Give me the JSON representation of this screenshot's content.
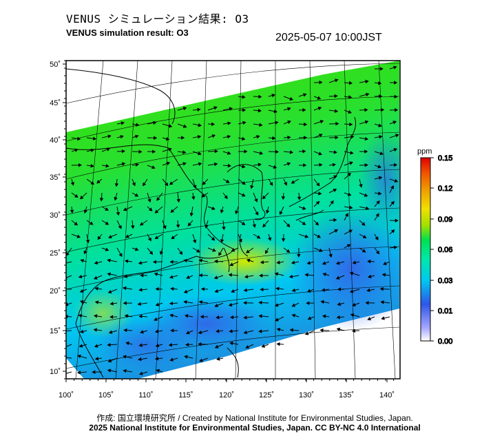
{
  "header": {
    "title_jp": "VENUS シミュレーション結果: O3",
    "title_en": "VENUS simulation result: O3",
    "timestamp": "2025-05-07 10:00JST"
  },
  "colorbar": {
    "unit": "ppm",
    "ticks": [
      "0.15",
      "0.12",
      "0.09",
      "0.06",
      "0.03",
      "0.01",
      "0.00"
    ],
    "colors": [
      "#ffffff",
      "#a8a8ff",
      "#2f56e8",
      "#1c8fe0",
      "#00c8f0",
      "#00e8a8",
      "#00e050",
      "#40e020",
      "#a0e000",
      "#f0e000",
      "#f0a000",
      "#f05000",
      "#e00000"
    ]
  },
  "map": {
    "lon_labels": [
      "100˚",
      "105˚",
      "110˚",
      "115˚",
      "120˚",
      "125˚",
      "130˚",
      "135˚",
      "140˚"
    ],
    "lat_labels": [
      "50˚",
      "45˚",
      "40˚",
      "35˚",
      "30˚",
      "25˚",
      "20˚",
      "15˚",
      "10˚"
    ],
    "variable": "O3"
  },
  "footer": {
    "credit": "作成: 国立環境研究所 / Created by National Institute for Environmental Studies, Japan.",
    "copyright": "2025 National Institute for Environmental Studies, Japan. CC BY-NC 4.0 International"
  }
}
